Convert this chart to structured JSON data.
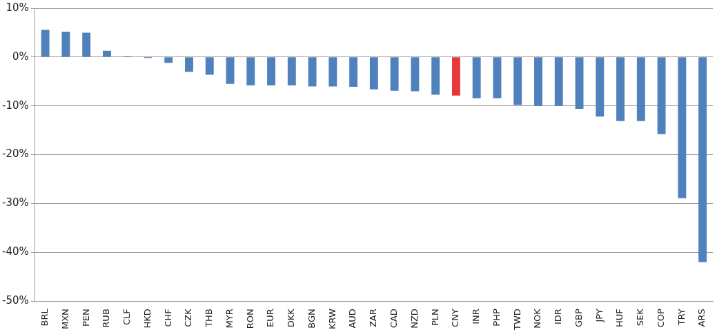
{
  "chart_data": {
    "type": "bar",
    "categories": [
      "BRL",
      "MXN",
      "PEN",
      "RUB",
      "CLF",
      "HKD",
      "CHF",
      "CZK",
      "THB",
      "MYR",
      "RON",
      "EUR",
      "DKK",
      "BGN",
      "KRW",
      "AUD",
      "ZAR",
      "CAD",
      "NZD",
      "PLN",
      "CNY",
      "INR",
      "PHP",
      "TWD",
      "NOK",
      "IDR",
      "GBP",
      "JPY",
      "HUF",
      "SEK",
      "COP",
      "TRY",
      "ARS"
    ],
    "values": [
      5.6,
      5.2,
      5.0,
      1.3,
      0.2,
      -0.2,
      -1.2,
      -3.0,
      -3.6,
      -5.5,
      -5.8,
      -5.8,
      -5.8,
      -6.0,
      -6.0,
      -6.1,
      -6.6,
      -6.9,
      -7.0,
      -7.7,
      -7.9,
      -8.4,
      -8.4,
      -9.8,
      -10.0,
      -10.0,
      -10.6,
      -12.2,
      -13.1,
      -13.1,
      -15.8,
      -28.9,
      -42.0
    ],
    "colors": [
      "#4f81bd",
      "#4f81bd",
      "#4f81bd",
      "#4f81bd",
      "#4f81bd",
      "#4f81bd",
      "#4f81bd",
      "#4f81bd",
      "#4f81bd",
      "#4f81bd",
      "#4f81bd",
      "#4f81bd",
      "#4f81bd",
      "#4f81bd",
      "#4f81bd",
      "#4f81bd",
      "#4f81bd",
      "#4f81bd",
      "#4f81bd",
      "#4f81bd",
      "#e8393a",
      "#4f81bd",
      "#4f81bd",
      "#4f81bd",
      "#4f81bd",
      "#4f81bd",
      "#4f81bd",
      "#4f81bd",
      "#4f81bd",
      "#4f81bd",
      "#4f81bd",
      "#4f81bd",
      "#4f81bd"
    ],
    "ylim": [
      -50,
      10
    ],
    "yticks": [
      {
        "value": 10,
        "label": "10%"
      },
      {
        "value": 0,
        "label": "0%"
      },
      {
        "value": -10,
        "label": "-10%"
      },
      {
        "value": -20,
        "label": "-20%"
      },
      {
        "value": -30,
        "label": "-30%"
      },
      {
        "value": -40,
        "label": "-40%"
      },
      {
        "value": -50,
        "label": "-50%"
      }
    ],
    "grid": "y",
    "legend": false
  }
}
